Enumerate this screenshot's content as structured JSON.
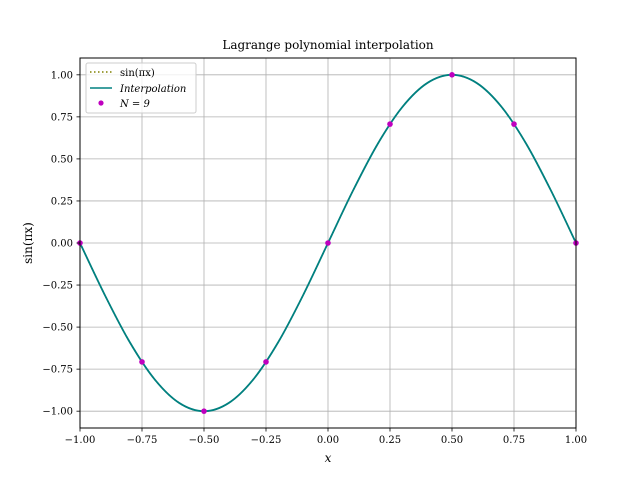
{
  "chart_data": {
    "type": "line",
    "title": "Lagrange polynomial interpolation",
    "xlabel": "x",
    "ylabel": "sin(πx)",
    "xlim": [
      -1.0,
      1.0
    ],
    "ylim": [
      -1.1,
      1.1
    ],
    "xticks": [
      -1.0,
      -0.75,
      -0.5,
      -0.25,
      0.0,
      0.25,
      0.5,
      0.75,
      1.0
    ],
    "xtick_labels": [
      "−1.00",
      "−0.75",
      "−0.50",
      "−0.25",
      "0.00",
      "0.25",
      "0.50",
      "0.75",
      "1.00"
    ],
    "yticks": [
      -1.0,
      -0.75,
      -0.5,
      -0.25,
      0.0,
      0.25,
      0.5,
      0.75,
      1.0
    ],
    "ytick_labels": [
      "−1.00",
      "−0.75",
      "−0.50",
      "−0.25",
      "0.00",
      "0.25",
      "0.50",
      "0.75",
      "1.00"
    ],
    "grid": true,
    "legend_position": "top-left",
    "series": [
      {
        "name": "sin(πx)",
        "kind": "line",
        "style": "dotted",
        "color": "#808000",
        "x": [
          -1.0,
          -0.9,
          -0.8,
          -0.7,
          -0.6,
          -0.5,
          -0.4,
          -0.3,
          -0.2,
          -0.1,
          0.0,
          0.1,
          0.2,
          0.3,
          0.4,
          0.5,
          0.6,
          0.7,
          0.8,
          0.9,
          1.0
        ],
        "y": [
          0.0,
          -0.309,
          -0.588,
          -0.809,
          -0.951,
          -1.0,
          -0.951,
          -0.809,
          -0.588,
          -0.309,
          0.0,
          0.309,
          0.588,
          0.809,
          0.951,
          1.0,
          0.951,
          0.809,
          0.588,
          0.309,
          0.0
        ]
      },
      {
        "name": "Interpolation",
        "kind": "line",
        "style": "solid",
        "color": "#008080",
        "x": [
          -1.0,
          -0.9,
          -0.8,
          -0.7,
          -0.6,
          -0.5,
          -0.4,
          -0.3,
          -0.2,
          -0.1,
          0.0,
          0.1,
          0.2,
          0.3,
          0.4,
          0.5,
          0.6,
          0.7,
          0.8,
          0.9,
          1.0
        ],
        "y": [
          0.0,
          -0.309,
          -0.588,
          -0.809,
          -0.951,
          -1.0,
          -0.951,
          -0.809,
          -0.588,
          -0.309,
          0.0,
          0.309,
          0.588,
          0.809,
          0.951,
          1.0,
          0.951,
          0.809,
          0.588,
          0.309,
          0.0
        ]
      },
      {
        "name": "N = 9",
        "kind": "scatter",
        "color": "#bf00bf",
        "x": [
          -1.0,
          -0.75,
          -0.5,
          -0.25,
          0.0,
          0.25,
          0.5,
          0.75,
          1.0
        ],
        "y": [
          0.0,
          -0.707,
          -1.0,
          -0.707,
          0.0,
          0.707,
          1.0,
          0.707,
          0.0
        ]
      }
    ]
  }
}
